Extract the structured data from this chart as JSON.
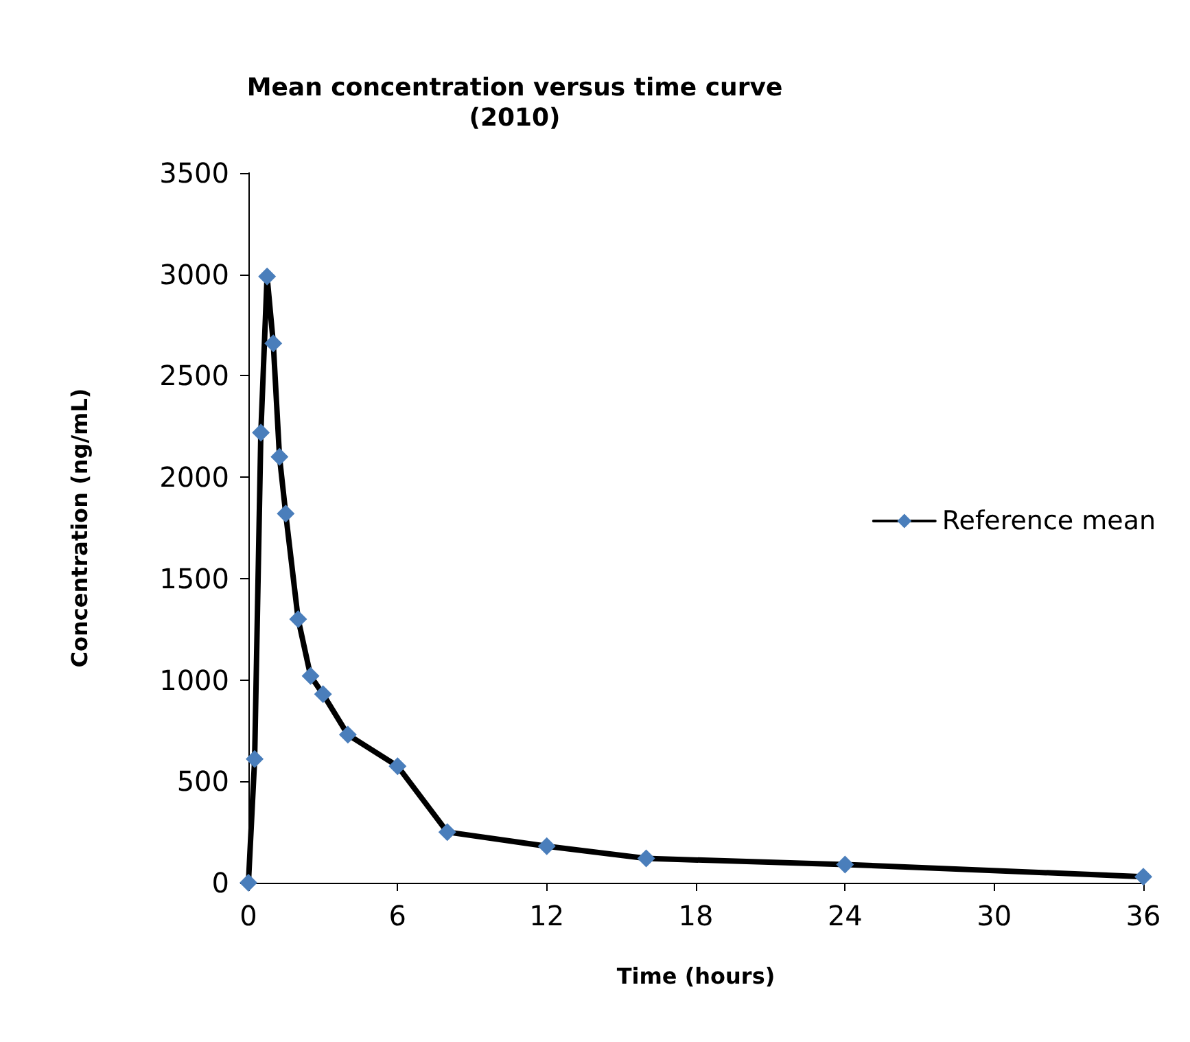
{
  "chart_data": {
    "type": "line",
    "title": "Mean concentration versus time curve",
    "subtitle": "(2010)",
    "xlabel": "Time (hours)",
    "ylabel": "Concentration (ng/mL)",
    "x": [
      0,
      0.25,
      0.5,
      0.75,
      1,
      1.25,
      1.5,
      2,
      2.5,
      3,
      4,
      6,
      8,
      12,
      16,
      24,
      36
    ],
    "series": [
      {
        "name": "Reference mean",
        "color": "#000000",
        "values": [
          0,
          610,
          2220,
          2990,
          2660,
          2100,
          1820,
          1300,
          1020,
          930,
          730,
          575,
          250,
          180,
          120,
          90,
          30
        ]
      }
    ],
    "xlim": [
      0,
      36
    ],
    "xticks": [
      0,
      6,
      12,
      18,
      24,
      30,
      36
    ],
    "ylim": [
      0,
      3500
    ],
    "yticks": [
      0,
      500,
      1000,
      1500,
      2000,
      2500,
      3000,
      3500
    ],
    "marker": "diamond",
    "line_style": "solid",
    "grid": false,
    "legend": "right"
  }
}
